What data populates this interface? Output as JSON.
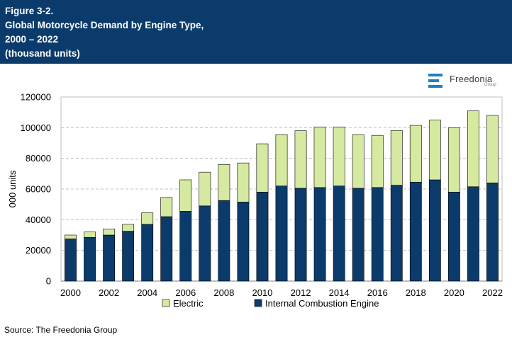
{
  "header": {
    "line1": "Figure 3-2.",
    "line2": "Global Motorcycle Demand by Engine Type,",
    "line3": "2000 – 2022",
    "line4": "(thousand units)"
  },
  "logo": {
    "word": "Freedonia",
    "sub": "Group"
  },
  "source": "Source: The Freedonia Group",
  "colors": {
    "header_bg": "#0b3b6b",
    "ice": "#0b3b6b",
    "electric": "#d6e9a0",
    "grid": "#bfbfbf"
  },
  "chart_data": {
    "type": "bar",
    "stacked": true,
    "title": "Global Motorcycle Demand by Engine Type, 2000 – 2022",
    "ylabel": "000 units",
    "xlabel": "",
    "ylim": [
      0,
      120000
    ],
    "yticks": [
      0,
      20000,
      40000,
      60000,
      80000,
      100000,
      120000
    ],
    "ytick_labels": [
      "0",
      "20000",
      "40000",
      "60000",
      "80000",
      "100000",
      "120000"
    ],
    "categories": [
      2000,
      2001,
      2002,
      2003,
      2004,
      2005,
      2006,
      2007,
      2008,
      2009,
      2010,
      2011,
      2012,
      2013,
      2014,
      2015,
      2016,
      2017,
      2018,
      2019,
      2020,
      2021,
      2022
    ],
    "xtick_labels": [
      "2000",
      "2002",
      "2004",
      "2006",
      "2008",
      "2010",
      "2012",
      "2014",
      "2016",
      "2018",
      "2020",
      "2022"
    ],
    "gridlines": "dashed horizontal",
    "legend_position": "bottom",
    "series": [
      {
        "name": "Internal Combustion Engine",
        "values": [
          27500,
          28500,
          30000,
          32500,
          37000,
          42000,
          45500,
          49000,
          52500,
          51500,
          58000,
          62000,
          60500,
          61000,
          62000,
          60500,
          61000,
          62500,
          64500,
          66000,
          58000,
          61500,
          64000
        ]
      },
      {
        "name": "Electric",
        "values": [
          2500,
          3500,
          4000,
          4500,
          7500,
          12500,
          20500,
          22000,
          23500,
          25500,
          31500,
          33500,
          37500,
          39500,
          38500,
          35000,
          34000,
          35700,
          37000,
          39000,
          42000,
          49500,
          44000
        ]
      }
    ],
    "legend": [
      "Electric",
      "Internal Combustion Engine"
    ]
  }
}
